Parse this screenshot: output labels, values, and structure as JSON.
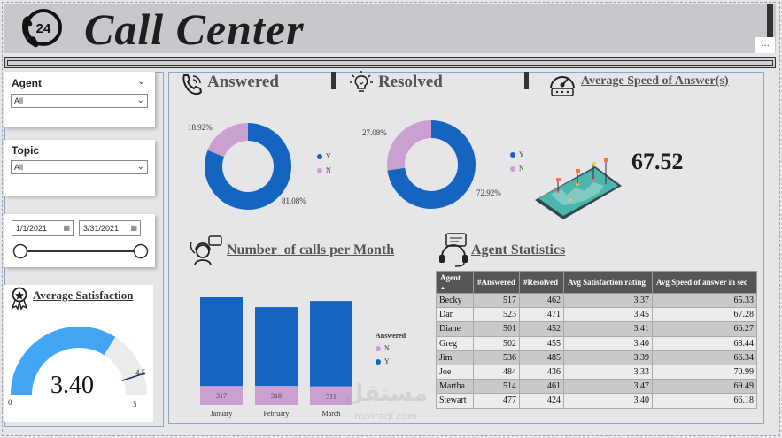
{
  "header": {
    "title": "Call Center",
    "logo_text": "24",
    "more_label": "..."
  },
  "filters": {
    "agent": {
      "label": "Agent",
      "value": "All"
    },
    "topic": {
      "label": "Topic",
      "value": "All"
    },
    "date_start": "1/1/2021",
    "date_end": "3/31/2021"
  },
  "sections": {
    "answered": "Answered",
    "resolved": "Resolved",
    "speed": "Average Speed of Answer(s)",
    "calls_per_month": "Number  of calls per Month",
    "agent_stats": "Agent Statistics",
    "avg_satisfaction": "Average Satisfaction"
  },
  "answered_donut": {
    "y_pct": 81.08,
    "n_pct": 18.92,
    "y_label": "81.08%",
    "n_label": "18.92%",
    "legend": [
      "Y",
      "N"
    ]
  },
  "resolved_donut": {
    "y_pct": 72.92,
    "n_pct": 27.08,
    "y_label": "72.92%",
    "n_label": "27.08%",
    "legend": [
      "Y",
      "N"
    ]
  },
  "speed_kpi": "67.52",
  "chart_data": {
    "type": "bar",
    "categories": [
      "January",
      "February",
      "March"
    ],
    "legend_title": "Answered",
    "series": [
      {
        "name": "N",
        "values": [
          317,
          318,
          311
        ]
      },
      {
        "name": "Y",
        "values": [
          1454,
          1292,
          1400
        ]
      }
    ]
  },
  "colors": {
    "y": "#1565c0",
    "n": "#c9a0d0",
    "gauge": "#42a5f5",
    "gauge_track": "#ececec"
  },
  "agent_table": {
    "columns": [
      "Agent",
      "#Answered",
      "#Resolved",
      "Avg Satisfaction rating",
      "Avg Speed of answer in sec"
    ],
    "rows": [
      [
        "Becky",
        "517",
        "462",
        "3.37",
        "65.33"
      ],
      [
        "Dan",
        "523",
        "471",
        "3.45",
        "67.28"
      ],
      [
        "Diane",
        "501",
        "452",
        "3.41",
        "66.27"
      ],
      [
        "Greg",
        "502",
        "455",
        "3.40",
        "68.44"
      ],
      [
        "Jim",
        "536",
        "485",
        "3.39",
        "66.34"
      ],
      [
        "Joe",
        "484",
        "436",
        "3.33",
        "70.99"
      ],
      [
        "Martha",
        "514",
        "461",
        "3.47",
        "69.49"
      ],
      [
        "Stewart",
        "477",
        "424",
        "3.40",
        "66.18"
      ]
    ]
  },
  "gauge": {
    "value": 3.4,
    "value_label": "3.40",
    "min_label": "0",
    "max_label": "5",
    "target_label": "4.5",
    "min": 0,
    "max": 5,
    "target": 4.5
  },
  "watermark": {
    "main": "مستقل",
    "sub": "mostaql.com"
  }
}
